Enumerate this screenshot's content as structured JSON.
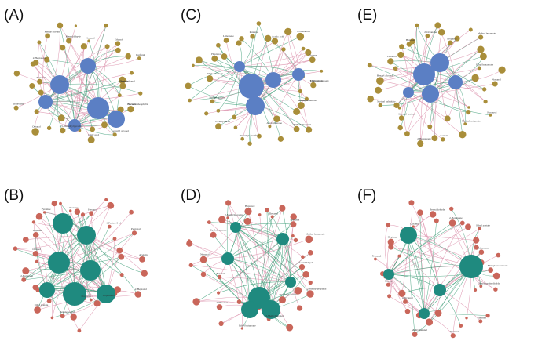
{
  "figure": {
    "colors": {
      "background": "#ffffff",
      "edge_positive": "#d98aa6",
      "edge_negative": "#3f9e78",
      "node_blue": "#5b7fc4",
      "node_gold": "#a98e3a",
      "node_teal": "#1f8a7f",
      "node_red": "#c9665a",
      "label_text": "#333333"
    },
    "panels": [
      {
        "id": "A",
        "letter": "(A)",
        "hub_color": "node_blue",
        "leaf_color": "node_gold",
        "labels": [
          "Oxalate",
          "Bacteriopheophytin",
          "Isobutyl alcohol",
          "Oleic acid",
          "2,5-Dimethylpyrazine",
          "Octanal",
          "Dodecanal",
          "Hexanal",
          "2-Heptanone",
          "Methyl acetate",
          "Benzaldehyde",
          "Nonanal",
          "Ethanol",
          "Furfural",
          "Phenylethanol",
          "Decanal"
        ]
      },
      {
        "id": "B",
        "letter": "(B)",
        "hub_color": "node_teal",
        "leaf_color": "node_red",
        "labels": [
          "Acetoin",
          "2-Heptanol",
          "Isopentanol",
          "Propanal",
          "Hexanoic acid",
          "Ethyl acetate",
          "2-Butanone",
          "Octanol",
          "Heptanal",
          "Pyrazine",
          "Limonene",
          "Hexanol",
          "1-Penten-3-ol",
          "Pentanal"
        ]
      },
      {
        "id": "C",
        "letter": "(C)",
        "hub_color": "node_blue",
        "leaf_color": "node_gold",
        "labels": [
          "Methyl butanoate",
          "Isobutyraldehyde",
          "3-Methylbutanal",
          "Acetophenone",
          "Dimethyl disulfide",
          "2-Pentylfuran",
          "Methyl acetate",
          "Ethyl octanoate",
          "Heptanal",
          "Limonene",
          "Pentanal",
          "Acetic acid",
          "2-Nonanone",
          "Octanal",
          "Thiophenol",
          "Propanol"
        ]
      },
      {
        "id": "D",
        "letter": "(D)",
        "hub_color": "node_teal",
        "leaf_color": "node_red",
        "labels": [
          "Acetaldehyde",
          "2-Methylpropanal",
          "Dimethyl sulfide",
          "3-Methylbutanol",
          "Ethyl butanoate",
          "2-Hexenal",
          "Butanal",
          "Nonanal",
          "Cyclohexanone",
          "2-Methylpyrazine",
          "Heptanol",
          "Decanal",
          "Pentanol",
          "Methyl hexanoate"
        ]
      },
      {
        "id": "E",
        "letter": "(E)",
        "hub_color": "node_blue",
        "leaf_color": "node_gold",
        "labels": [
          "Nonanol",
          "Furaneol",
          "Methyl octanoate",
          "Acetoin",
          "2-Heptanone",
          "Geranyl acetone",
          "Methyl palmitate",
          "Benzyl alcohol",
          "Linalool",
          "Hexanal",
          "2-Octanone",
          "Propanal",
          "Methyl butanoate",
          "Ethyl hexanoate"
        ]
      },
      {
        "id": "F",
        "letter": "(F)",
        "hub_color": "node_teal",
        "leaf_color": "node_red",
        "labels": [
          "Methyl propanoate",
          "Dihydroactinidiolide",
          "Menthol",
          "Pentanal",
          "Methylbutanal",
          "2-Octanol",
          "Butanol",
          "Nonanal",
          "Heptanal",
          "Octanol",
          "Benzaldehyde",
          "2-Hexanone",
          "Ethyl acetate",
          "Limonene"
        ]
      }
    ]
  }
}
